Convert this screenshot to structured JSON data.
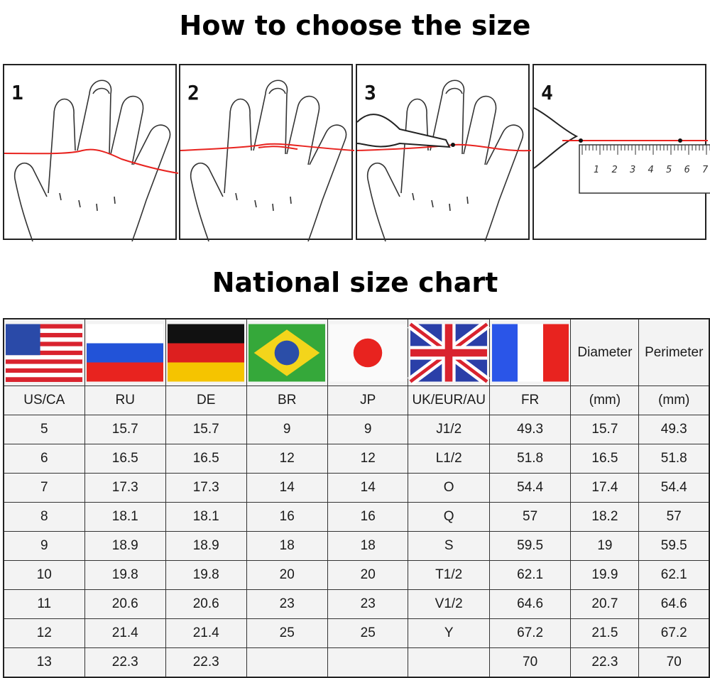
{
  "title": "How to choose the size",
  "steps": [
    {
      "number": "1"
    },
    {
      "number": "2"
    },
    {
      "number": "3"
    },
    {
      "number": "4",
      "ruler_labels": [
        "1",
        "2",
        "3",
        "4",
        "5",
        "6",
        "7"
      ]
    }
  ],
  "chart_title": "National size chart",
  "colors": {
    "measure_line": "#e8231f",
    "table_bg": "#f3f3f3"
  },
  "table": {
    "flag_row": [
      "us-flag",
      "ru-flag",
      "de-flag",
      "br-flag",
      "jp-flag",
      "uk-flag",
      "fr-flag",
      "Diameter",
      "Perimeter"
    ],
    "headers": [
      "US/CA",
      "RU",
      "DE",
      "BR",
      "JP",
      "UK/EUR/AU",
      "FR",
      "(mm)",
      "(mm)"
    ],
    "rows": [
      [
        "5",
        "15.7",
        "15.7",
        "9",
        "9",
        "J1/2",
        "49.3",
        "15.7",
        "49.3"
      ],
      [
        "6",
        "16.5",
        "16.5",
        "12",
        "12",
        "L1/2",
        "51.8",
        "16.5",
        "51.8"
      ],
      [
        "7",
        "17.3",
        "17.3",
        "14",
        "14",
        "O",
        "54.4",
        "17.4",
        "54.4"
      ],
      [
        "8",
        "18.1",
        "18.1",
        "16",
        "16",
        "Q",
        "57",
        "18.2",
        "57"
      ],
      [
        "9",
        "18.9",
        "18.9",
        "18",
        "18",
        "S",
        "59.5",
        "19",
        "59.5"
      ],
      [
        "10",
        "19.8",
        "19.8",
        "20",
        "20",
        "T1/2",
        "62.1",
        "19.9",
        "62.1"
      ],
      [
        "11",
        "20.6",
        "20.6",
        "23",
        "23",
        "V1/2",
        "64.6",
        "20.7",
        "64.6"
      ],
      [
        "12",
        "21.4",
        "21.4",
        "25",
        "25",
        "Y",
        "67.2",
        "21.5",
        "67.2"
      ],
      [
        "13",
        "22.3",
        "22.3",
        "",
        "",
        "",
        "70",
        "22.3",
        "70"
      ]
    ]
  }
}
